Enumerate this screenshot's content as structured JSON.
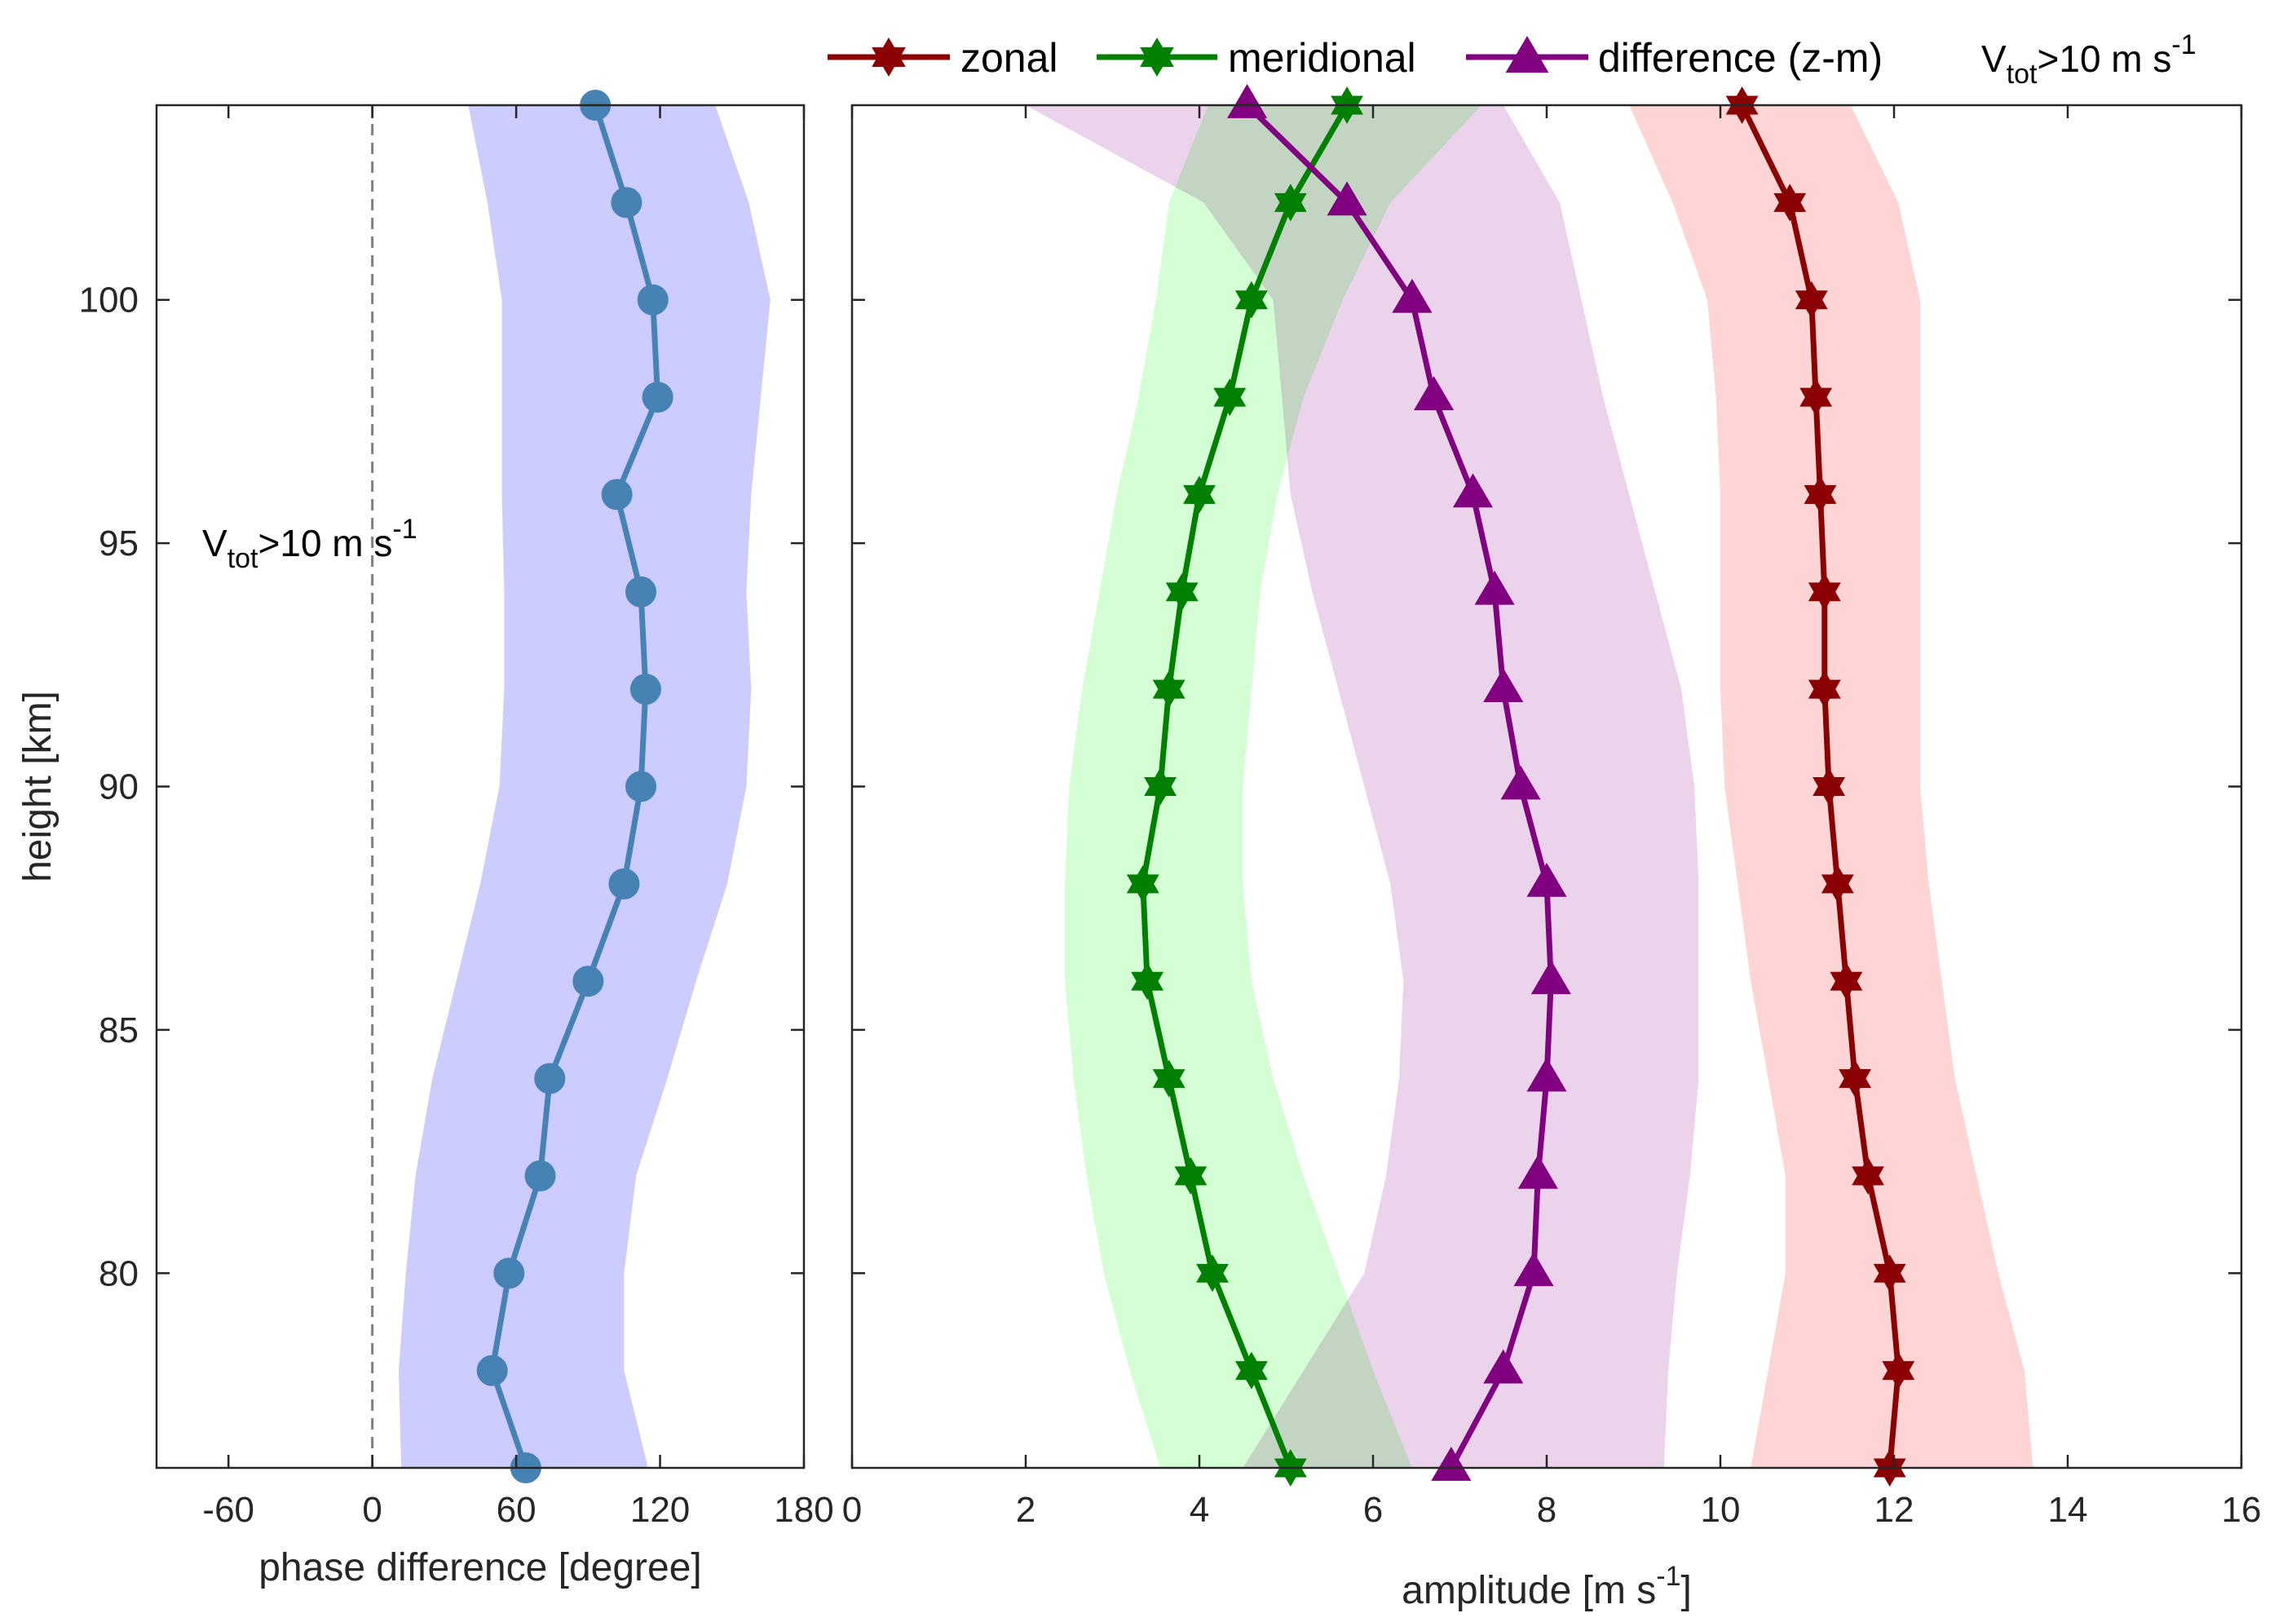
{
  "chart_data": [
    {
      "id": "left",
      "type": "line",
      "xlabel": "phase difference [degree]",
      "ylabel": "height [km]",
      "xlim": [
        -90,
        180
      ],
      "ylim": [
        76,
        104
      ],
      "xticks": [
        -60,
        0,
        60,
        120,
        180
      ],
      "yticks": [
        80,
        85,
        90,
        95,
        100
      ],
      "annotation": {
        "prefix": "V",
        "sub": "tot",
        "text": ">10 m s",
        "sup": "-1"
      },
      "reference_line": {
        "x": 0,
        "style": "dashed"
      },
      "series": [
        {
          "name": "phase difference",
          "color": "#4682B4",
          "marker": "circle",
          "points": [
            {
              "y": 76,
              "x": 64
            },
            {
              "y": 78,
              "x": 50
            },
            {
              "y": 80,
              "x": 57
            },
            {
              "y": 82,
              "x": 70
            },
            {
              "y": 84,
              "x": 74
            },
            {
              "y": 86,
              "x": 90
            },
            {
              "y": 88,
              "x": 105
            },
            {
              "y": 90,
              "x": 112
            },
            {
              "y": 92,
              "x": 114
            },
            {
              "y": 94,
              "x": 112
            },
            {
              "y": 96,
              "x": 102
            },
            {
              "y": 98,
              "x": 119
            },
            {
              "y": 100,
              "x": 117
            },
            {
              "y": 102,
              "x": 106
            },
            {
              "y": 104,
              "x": 93
            }
          ],
          "band": {
            "color": "#ccccff",
            "lower": [
              12,
              11,
              14,
              18,
              25,
              35,
              45,
              53,
              55,
              55,
              54,
              54,
              54,
              48,
              40
            ],
            "upper": [
              115,
              105,
              105,
              110,
              123,
              135,
              148,
              156,
              158,
              156,
              158,
              162,
              166,
              157,
              143
            ]
          }
        }
      ]
    },
    {
      "id": "right",
      "type": "line",
      "xlabel": "amplitude [m s-1]",
      "xlabel_parts": {
        "text": "amplitude [m s",
        "sup": "-1",
        "close": "]"
      },
      "ylabel": "",
      "xlim": [
        0,
        16
      ],
      "ylim": [
        76,
        104
      ],
      "xticks": [
        0,
        2,
        4,
        6,
        8,
        10,
        12,
        14,
        16
      ],
      "yticks": [
        80,
        85,
        90,
        95,
        100
      ],
      "annotation": {
        "prefix": "V",
        "sub": "tot",
        "text": ">10 m s",
        "sup": "-1"
      },
      "legend": {
        "placement": "top",
        "entries": [
          "zonal",
          "meridional",
          "difference (z-m)"
        ]
      },
      "heights": [
        76,
        78,
        80,
        82,
        84,
        86,
        88,
        90,
        92,
        94,
        96,
        98,
        100,
        102,
        104
      ],
      "series": [
        {
          "name": "zonal",
          "color": "#8B0000",
          "marker": "hexagram",
          "values": [
            11.95,
            12.05,
            11.95,
            11.7,
            11.55,
            11.45,
            11.35,
            11.25,
            11.2,
            11.2,
            11.15,
            11.1,
            11.05,
            10.8,
            10.25
          ],
          "band": {
            "color": "#ffc8c8",
            "lower": [
              10.35,
              10.55,
              10.75,
              10.75,
              10.55,
              10.35,
              10.2,
              10.05,
              10.0,
              10.0,
              10.0,
              9.95,
              9.85,
              9.45,
              8.95
            ],
            "upper": [
              13.6,
              13.5,
              13.2,
              12.95,
              12.7,
              12.55,
              12.4,
              12.3,
              12.3,
              12.3,
              12.3,
              12.3,
              12.3,
              12.05,
              11.5
            ]
          }
        },
        {
          "name": "meridional",
          "color": "#008000",
          "marker": "hexagram",
          "values": [
            5.05,
            4.6,
            4.15,
            3.9,
            3.65,
            3.4,
            3.35,
            3.55,
            3.65,
            3.8,
            4.0,
            4.35,
            4.6,
            5.05,
            5.7
          ],
          "band": {
            "color": "#c8ffc8",
            "lower": [
              3.55,
              3.2,
              2.9,
              2.7,
              2.55,
              2.45,
              2.45,
              2.5,
              2.65,
              2.85,
              3.05,
              3.3,
              3.5,
              3.65,
              4.1
            ],
            "upper": [
              6.45,
              6.0,
              5.6,
              5.2,
              4.85,
              4.6,
              4.5,
              4.5,
              4.6,
              4.7,
              4.9,
              5.2,
              5.65,
              6.2,
              7.25
            ]
          }
        },
        {
          "name": "difference (z-m)",
          "color": "#800080",
          "marker": "triangle",
          "values": [
            6.9,
            7.5,
            7.85,
            7.9,
            8.0,
            8.05,
            8.0,
            7.7,
            7.5,
            7.4,
            7.15,
            6.7,
            6.45,
            5.7,
            4.55
          ],
          "band": {
            "color": "#e6c8e6",
            "lower": [
              4.5,
              5.2,
              5.9,
              6.15,
              6.3,
              6.35,
              6.2,
              5.9,
              5.6,
              5.3,
              5.05,
              4.95,
              4.85,
              4.05,
              2.0
            ],
            "upper": [
              9.35,
              9.4,
              9.5,
              9.65,
              9.75,
              9.75,
              9.75,
              9.7,
              9.55,
              9.25,
              8.95,
              8.65,
              8.4,
              8.15,
              7.5
            ]
          }
        }
      ]
    }
  ]
}
